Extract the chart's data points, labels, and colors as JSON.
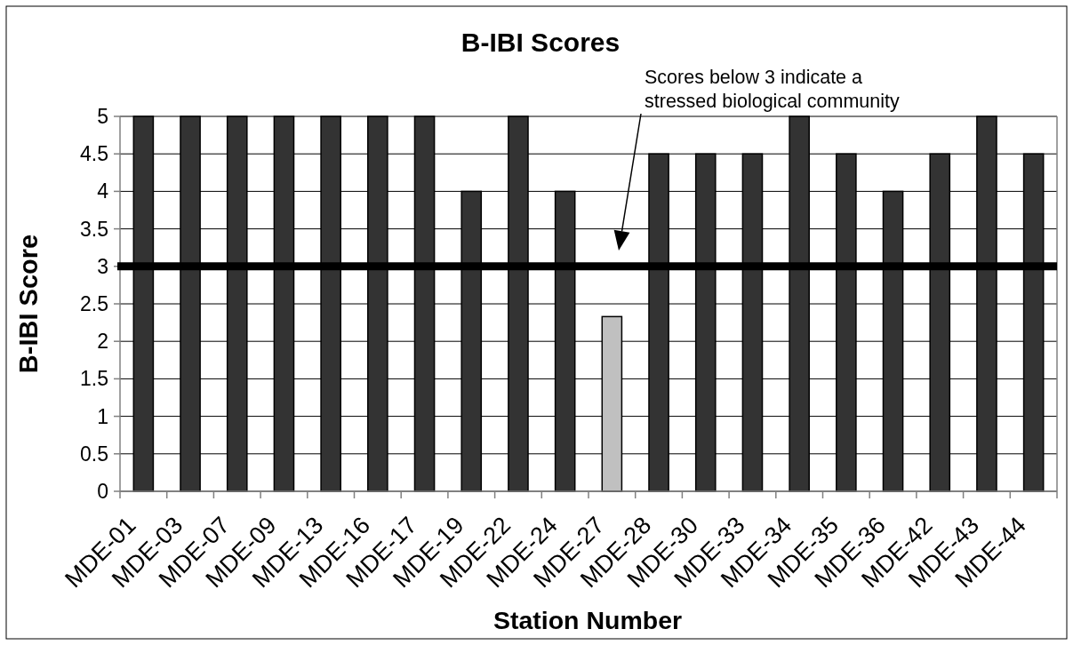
{
  "chart_data": {
    "type": "bar",
    "title": "B-IBI Scores",
    "xlabel": "Station Number",
    "ylabel": "B-IBI Score",
    "categories": [
      "MDE-01",
      "MDE-03",
      "MDE-07",
      "MDE-09",
      "MDE-13",
      "MDE-16",
      "MDE-17",
      "MDE-19",
      "MDE-22",
      "MDE-24",
      "MDE-27",
      "MDE-28",
      "MDE-30",
      "MDE-33",
      "MDE-34",
      "MDE-35",
      "MDE-36",
      "MDE-42",
      "MDE-43",
      "MDE-44"
    ],
    "values": [
      5,
      5,
      5,
      5,
      5,
      5,
      5,
      4,
      5,
      4,
      2.33,
      4.5,
      4.5,
      4.5,
      5,
      4.5,
      4,
      4.5,
      5,
      4.5
    ],
    "colors": [
      "#333333",
      "#333333",
      "#333333",
      "#333333",
      "#333333",
      "#333333",
      "#333333",
      "#333333",
      "#333333",
      "#333333",
      "#c0c0c0",
      "#333333",
      "#333333",
      "#333333",
      "#333333",
      "#333333",
      "#333333",
      "#333333",
      "#333333",
      "#333333"
    ],
    "ylim": [
      0,
      5
    ],
    "yticks": [
      0,
      0.5,
      1,
      1.5,
      2,
      2.5,
      3,
      3.5,
      4,
      4.5,
      5
    ],
    "grid": "y",
    "ref_lines": [
      {
        "axis": "y",
        "value": 3,
        "color": "#000000"
      }
    ],
    "annotations": [
      "Scores below 3 indicate a stressed biological community"
    ]
  }
}
